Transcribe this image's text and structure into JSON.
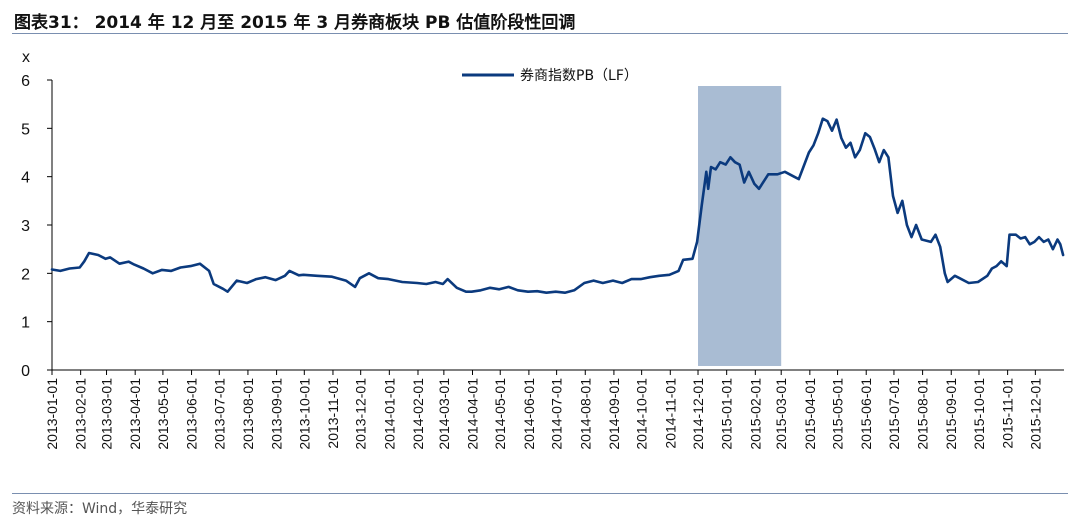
{
  "header": {
    "title": "图表31： 2014 年 12 月至 2015 年 3 月券商板块 PB 估值阶段性回调"
  },
  "footer": {
    "source": "资料来源：Wind，华泰研究"
  },
  "colors": {
    "series": "#0b3a7e",
    "highlight": "#a9bcd3",
    "rule": "#7a8fb0"
  },
  "chart_data": {
    "type": "line",
    "title": "图表31： 2014 年 12 月至 2015 年 3 月券商板块 PB 估值阶段性回调",
    "ylabel": "x",
    "ylim": [
      0,
      6
    ],
    "yticks": [
      "0",
      "1",
      "2",
      "3",
      "4",
      "5",
      "6"
    ],
    "grid": false,
    "legend_position": "top-center",
    "x_ticks": [
      "2013-01-01",
      "2013-02-01",
      "2013-03-01",
      "2013-04-01",
      "2013-05-01",
      "2013-06-01",
      "2013-07-01",
      "2013-08-01",
      "2013-09-01",
      "2013-10-01",
      "2013-11-01",
      "2013-12-01",
      "2014-01-01",
      "2014-02-01",
      "2014-03-01",
      "2014-04-01",
      "2014-05-01",
      "2014-06-01",
      "2014-07-01",
      "2014-08-01",
      "2014-09-01",
      "2014-10-01",
      "2014-11-01",
      "2014-12-01",
      "2015-01-01",
      "2015-02-01",
      "2015-03-01",
      "2015-04-01",
      "2015-05-01",
      "2015-06-01",
      "2015-07-01",
      "2015-08-01",
      "2015-09-01",
      "2015-10-01",
      "2015-11-01",
      "2015-12-01"
    ],
    "highlight_range": [
      "2014-12-01",
      "2015-03-01"
    ],
    "series": [
      {
        "name": "券商指数PB（LF）",
        "points": [
          [
            "2013-01-01",
            2.08
          ],
          [
            "2013-01-10",
            2.05
          ],
          [
            "2013-01-20",
            2.1
          ],
          [
            "2013-01-31",
            2.12
          ],
          [
            "2013-02-05",
            2.25
          ],
          [
            "2013-02-10",
            2.42
          ],
          [
            "2013-02-20",
            2.38
          ],
          [
            "2013-02-28",
            2.3
          ],
          [
            "2013-03-05",
            2.33
          ],
          [
            "2013-03-15",
            2.2
          ],
          [
            "2013-03-25",
            2.24
          ],
          [
            "2013-03-31",
            2.18
          ],
          [
            "2013-04-10",
            2.1
          ],
          [
            "2013-04-20",
            2.0
          ],
          [
            "2013-04-30",
            2.07
          ],
          [
            "2013-05-10",
            2.05
          ],
          [
            "2013-05-20",
            2.12
          ],
          [
            "2013-05-31",
            2.15
          ],
          [
            "2013-06-10",
            2.2
          ],
          [
            "2013-06-20",
            2.05
          ],
          [
            "2013-06-25",
            1.78
          ],
          [
            "2013-07-05",
            1.68
          ],
          [
            "2013-07-10",
            1.62
          ],
          [
            "2013-07-20",
            1.85
          ],
          [
            "2013-07-31",
            1.8
          ],
          [
            "2013-08-10",
            1.88
          ],
          [
            "2013-08-20",
            1.92
          ],
          [
            "2013-08-31",
            1.86
          ],
          [
            "2013-09-10",
            1.95
          ],
          [
            "2013-09-15",
            2.05
          ],
          [
            "2013-09-25",
            1.96
          ],
          [
            "2013-09-30",
            1.97
          ],
          [
            "2013-10-15",
            1.95
          ],
          [
            "2013-10-31",
            1.93
          ],
          [
            "2013-11-15",
            1.85
          ],
          [
            "2013-11-25",
            1.72
          ],
          [
            "2013-11-30",
            1.9
          ],
          [
            "2013-12-10",
            2.0
          ],
          [
            "2013-12-20",
            1.9
          ],
          [
            "2013-12-31",
            1.88
          ],
          [
            "2014-01-15",
            1.82
          ],
          [
            "2014-01-31",
            1.8
          ],
          [
            "2014-02-10",
            1.78
          ],
          [
            "2014-02-20",
            1.82
          ],
          [
            "2014-02-28",
            1.78
          ],
          [
            "2014-03-05",
            1.88
          ],
          [
            "2014-03-15",
            1.7
          ],
          [
            "2014-03-25",
            1.62
          ],
          [
            "2014-03-31",
            1.62
          ],
          [
            "2014-04-10",
            1.65
          ],
          [
            "2014-04-20",
            1.7
          ],
          [
            "2014-04-30",
            1.67
          ],
          [
            "2014-05-10",
            1.72
          ],
          [
            "2014-05-20",
            1.65
          ],
          [
            "2014-05-31",
            1.62
          ],
          [
            "2014-06-10",
            1.63
          ],
          [
            "2014-06-20",
            1.6
          ],
          [
            "2014-06-30",
            1.62
          ],
          [
            "2014-07-10",
            1.6
          ],
          [
            "2014-07-20",
            1.65
          ],
          [
            "2014-07-31",
            1.8
          ],
          [
            "2014-08-10",
            1.85
          ],
          [
            "2014-08-20",
            1.8
          ],
          [
            "2014-08-31",
            1.85
          ],
          [
            "2014-09-10",
            1.8
          ],
          [
            "2014-09-20",
            1.88
          ],
          [
            "2014-09-30",
            1.88
          ],
          [
            "2014-10-10",
            1.92
          ],
          [
            "2014-10-20",
            1.95
          ],
          [
            "2014-10-31",
            1.97
          ],
          [
            "2014-11-10",
            2.05
          ],
          [
            "2014-11-15",
            2.28
          ],
          [
            "2014-11-25",
            2.3
          ],
          [
            "2014-11-30",
            2.65
          ],
          [
            "2014-12-05",
            3.4
          ],
          [
            "2014-12-10",
            4.1
          ],
          [
            "2014-12-12",
            3.75
          ],
          [
            "2014-12-15",
            4.2
          ],
          [
            "2014-12-20",
            4.15
          ],
          [
            "2014-12-25",
            4.3
          ],
          [
            "2014-12-31",
            4.25
          ],
          [
            "2015-01-05",
            4.4
          ],
          [
            "2015-01-10",
            4.3
          ],
          [
            "2015-01-15",
            4.25
          ],
          [
            "2015-01-20",
            3.88
          ],
          [
            "2015-01-25",
            4.1
          ],
          [
            "2015-01-31",
            3.85
          ],
          [
            "2015-02-05",
            3.75
          ],
          [
            "2015-02-15",
            4.05
          ],
          [
            "2015-02-25",
            4.05
          ],
          [
            "2015-03-05",
            4.1
          ],
          [
            "2015-03-15",
            4.0
          ],
          [
            "2015-03-20",
            3.95
          ],
          [
            "2015-03-25",
            4.2
          ],
          [
            "2015-03-31",
            4.5
          ],
          [
            "2015-04-05",
            4.65
          ],
          [
            "2015-04-10",
            4.9
          ],
          [
            "2015-04-15",
            5.2
          ],
          [
            "2015-04-20",
            5.15
          ],
          [
            "2015-04-25",
            4.95
          ],
          [
            "2015-04-30",
            5.18
          ],
          [
            "2015-05-05",
            4.8
          ],
          [
            "2015-05-10",
            4.6
          ],
          [
            "2015-05-15",
            4.7
          ],
          [
            "2015-05-20",
            4.4
          ],
          [
            "2015-05-25",
            4.55
          ],
          [
            "2015-05-31",
            4.9
          ],
          [
            "2015-06-05",
            4.82
          ],
          [
            "2015-06-10",
            4.58
          ],
          [
            "2015-06-15",
            4.3
          ],
          [
            "2015-06-20",
            4.55
          ],
          [
            "2015-06-25",
            4.4
          ],
          [
            "2015-06-30",
            3.6
          ],
          [
            "2015-07-05",
            3.25
          ],
          [
            "2015-07-10",
            3.5
          ],
          [
            "2015-07-15",
            3.0
          ],
          [
            "2015-07-20",
            2.75
          ],
          [
            "2015-07-25",
            3.0
          ],
          [
            "2015-07-31",
            2.7
          ],
          [
            "2015-08-10",
            2.65
          ],
          [
            "2015-08-15",
            2.8
          ],
          [
            "2015-08-20",
            2.55
          ],
          [
            "2015-08-25",
            2.0
          ],
          [
            "2015-08-28",
            1.82
          ],
          [
            "2015-09-05",
            1.95
          ],
          [
            "2015-09-10",
            1.9
          ],
          [
            "2015-09-20",
            1.8
          ],
          [
            "2015-09-30",
            1.82
          ],
          [
            "2015-10-10",
            1.95
          ],
          [
            "2015-10-15",
            2.1
          ],
          [
            "2015-10-20",
            2.15
          ],
          [
            "2015-10-25",
            2.25
          ],
          [
            "2015-10-31",
            2.15
          ],
          [
            "2015-11-03",
            2.8
          ],
          [
            "2015-11-10",
            2.8
          ],
          [
            "2015-11-15",
            2.72
          ],
          [
            "2015-11-20",
            2.75
          ],
          [
            "2015-11-25",
            2.6
          ],
          [
            "2015-11-30",
            2.65
          ],
          [
            "2015-12-05",
            2.75
          ],
          [
            "2015-12-10",
            2.65
          ],
          [
            "2015-12-15",
            2.7
          ],
          [
            "2015-12-20",
            2.5
          ],
          [
            "2015-12-25",
            2.7
          ],
          [
            "2015-12-28",
            2.6
          ],
          [
            "2015-12-31",
            2.38
          ]
        ]
      }
    ]
  }
}
